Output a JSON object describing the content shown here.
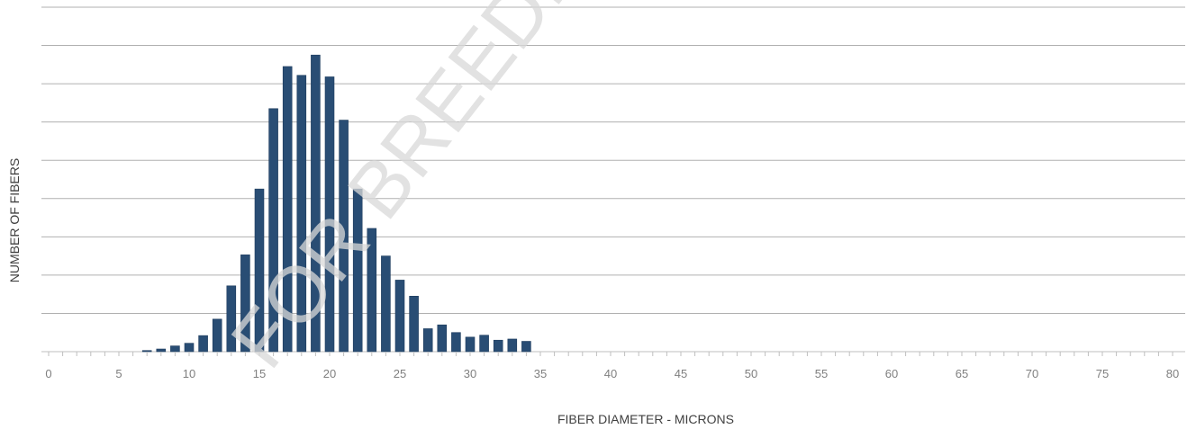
{
  "chart_data": {
    "type": "bar",
    "xlabel": "FIBER DIAMETER - MICRONS",
    "ylabel": "NUMBER OF FIBERS",
    "xlim": [
      0,
      80
    ],
    "x_ticks": [
      "0",
      "5",
      "10",
      "15",
      "20",
      "25",
      "30",
      "35",
      "40",
      "45",
      "50",
      "55",
      "60",
      "65",
      "70",
      "75",
      "80"
    ],
    "ylim": [
      0,
      9
    ],
    "grid": true,
    "y_tick_labels_shown": false,
    "watermark": "FOR BREEDER",
    "bar_color": "#294d74",
    "x": [
      7,
      8,
      9,
      10,
      11,
      12,
      13,
      14,
      15,
      16,
      17,
      18,
      19,
      20,
      21,
      22,
      23,
      24,
      25,
      26,
      27,
      28,
      29,
      30,
      31,
      32,
      33,
      34
    ],
    "values": [
      0.03,
      0.07,
      0.15,
      0.22,
      0.42,
      0.85,
      1.72,
      2.53,
      4.25,
      6.35,
      7.45,
      7.22,
      7.75,
      7.18,
      6.05,
      4.25,
      3.22,
      2.5,
      1.87,
      1.45,
      0.6,
      0.7,
      0.5,
      0.38,
      0.43,
      0.3,
      0.33,
      0.27
    ]
  }
}
